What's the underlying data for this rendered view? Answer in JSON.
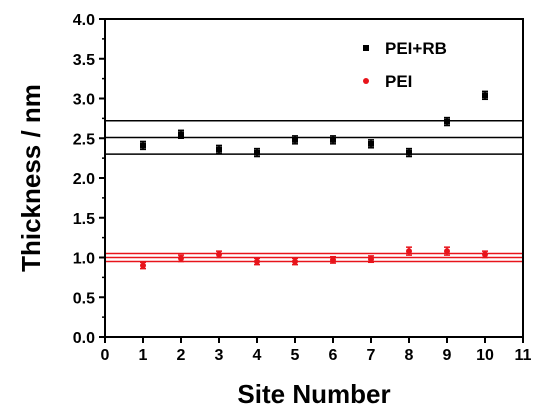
{
  "chart_data": {
    "type": "scatter",
    "xlabel": "Site Number",
    "ylabel": "Thickness / nm",
    "xlim": [
      0,
      11
    ],
    "ylim": [
      0.0,
      4.0
    ],
    "x_ticks": [
      0,
      1,
      2,
      3,
      4,
      5,
      6,
      7,
      8,
      9,
      10,
      11
    ],
    "x_tick_labels": [
      "0",
      "1",
      "2",
      "3",
      "4",
      "5",
      "6",
      "7",
      "8",
      "9",
      "10",
      "11"
    ],
    "y_ticks": [
      0.0,
      0.5,
      1.0,
      1.5,
      2.0,
      2.5,
      3.0,
      3.5,
      4.0
    ],
    "y_tick_labels": [
      "0.0",
      "0.5",
      "1.0",
      "1.5",
      "2.0",
      "2.5",
      "3.0",
      "3.5",
      "4.0"
    ],
    "grid": false,
    "legend_position": "top-right",
    "series": [
      {
        "name": "PEI+RB",
        "color": "#000000",
        "marker": "square",
        "x": [
          1,
          2,
          3,
          4,
          5,
          6,
          7,
          8,
          9,
          10
        ],
        "y": [
          2.41,
          2.55,
          2.36,
          2.32,
          2.48,
          2.48,
          2.43,
          2.32,
          2.71,
          3.04
        ],
        "error": [
          0.05,
          0.05,
          0.05,
          0.05,
          0.05,
          0.05,
          0.05,
          0.05,
          0.05,
          0.05
        ],
        "reference_lines": [
          2.3,
          2.51,
          2.72
        ]
      },
      {
        "name": "PEI",
        "color": "#e8141b",
        "marker": "circle",
        "x": [
          1,
          2,
          3,
          4,
          5,
          6,
          7,
          8,
          9,
          10
        ],
        "y": [
          0.9,
          0.99,
          1.04,
          0.95,
          0.95,
          0.97,
          0.98,
          1.08,
          1.08,
          1.04
        ],
        "error": [
          0.04,
          0.04,
          0.04,
          0.04,
          0.04,
          0.04,
          0.04,
          0.05,
          0.05,
          0.04
        ],
        "reference_lines": [
          0.95,
          1.0,
          1.05
        ]
      }
    ]
  }
}
